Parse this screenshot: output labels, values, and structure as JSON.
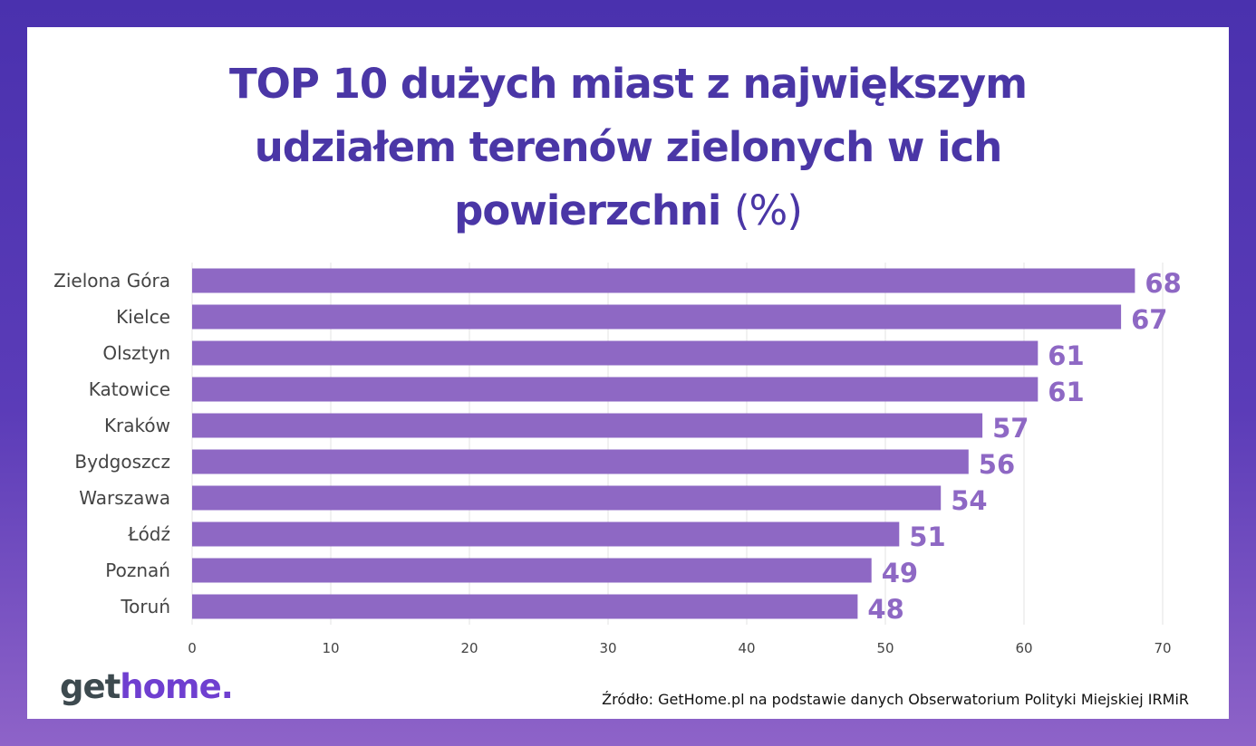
{
  "title": {
    "line1": "TOP 10 dużych miast z największym",
    "line2": "udziałem terenów zielonych w ich",
    "line3": "powierzchni",
    "unit": "(%)"
  },
  "logo": {
    "get": "get",
    "home": "home",
    "dot": "."
  },
  "source": "Źródło: GetHome.pl na podstawie danych Obserwatorium Polityki Miejskiej IRMiR",
  "colors": {
    "bar": "#8e68c4",
    "label": "#8e68c4",
    "title": "#4a36a6",
    "frame": "#4a31ae"
  },
  "chart_data": {
    "type": "bar",
    "orientation": "horizontal",
    "categories": [
      "Zielona Góra",
      "Kielce",
      "Olsztyn",
      "Katowice",
      "Kraków",
      "Bydgoszcz",
      "Warszawa",
      "Łódź",
      "Poznań",
      "Toruń"
    ],
    "values": [
      68,
      67,
      61,
      61,
      57,
      56,
      54,
      51,
      49,
      48
    ],
    "xlim": [
      0,
      70
    ],
    "xticks": [
      0,
      10,
      20,
      30,
      40,
      50,
      60,
      70
    ],
    "grid": true,
    "data_labels": true
  }
}
